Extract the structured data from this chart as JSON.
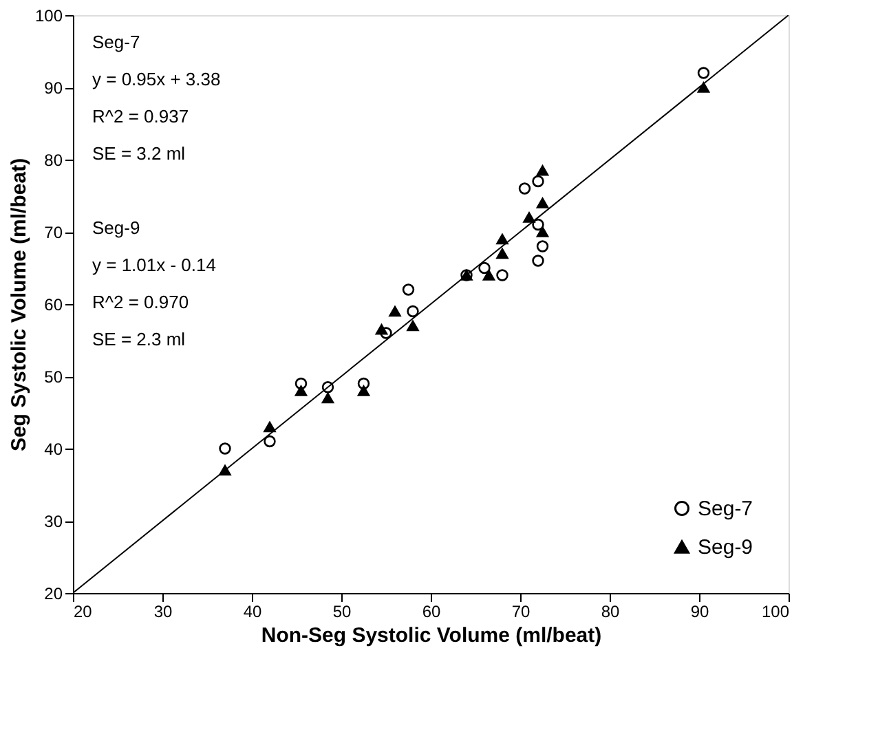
{
  "chart_data": {
    "type": "scatter",
    "xlabel": "Non-Seg Systolic Volume (ml/beat)",
    "ylabel": "Seg Systolic Volume (ml/beat)",
    "xlim": [
      20,
      100
    ],
    "ylim": [
      20,
      100
    ],
    "xticks": [
      20,
      30,
      40,
      50,
      60,
      70,
      80,
      90,
      100
    ],
    "yticks": [
      20,
      30,
      40,
      50,
      60,
      70,
      80,
      90,
      100
    ],
    "grid": false,
    "legend": "bottom right",
    "annotations": [
      "Seg-7",
      "y = 0.95x + 3.38",
      "R^2 = 0.937",
      "SE = 3.2 ml",
      "Seg-9",
      "y = 1.01x - 0.14",
      "R^2 = 0.970",
      "SE = 2.3 ml"
    ],
    "series": [
      {
        "name": "Seg-7",
        "color": "#000000",
        "marker": "circle",
        "x": [
          37,
          42,
          45.5,
          48.5,
          52.5,
          55,
          57.5,
          58,
          64,
          66,
          68,
          70.5,
          72,
          72,
          72.5,
          72,
          90.5
        ],
        "values": [
          40,
          41,
          49,
          48.5,
          49,
          56,
          62,
          59,
          64,
          65,
          64,
          76,
          77,
          71,
          68,
          66,
          92
        ]
      },
      {
        "name": "Seg-9",
        "color": "#000000",
        "marker": "triangle",
        "x": [
          37,
          42,
          45.5,
          48.5,
          52.5,
          54.5,
          56,
          58,
          64,
          66.5,
          68,
          68,
          71,
          72.5,
          72.5,
          72.5,
          90.5
        ],
        "values": [
          37,
          43,
          48,
          47,
          48,
          56.5,
          59,
          57,
          64,
          64,
          69,
          67,
          72,
          78.5,
          74,
          70,
          90
        ]
      },
      {
        "type": "line",
        "color": "#000000",
        "x": [
          20,
          100
        ],
        "values": [
          20,
          100
        ]
      }
    ]
  }
}
